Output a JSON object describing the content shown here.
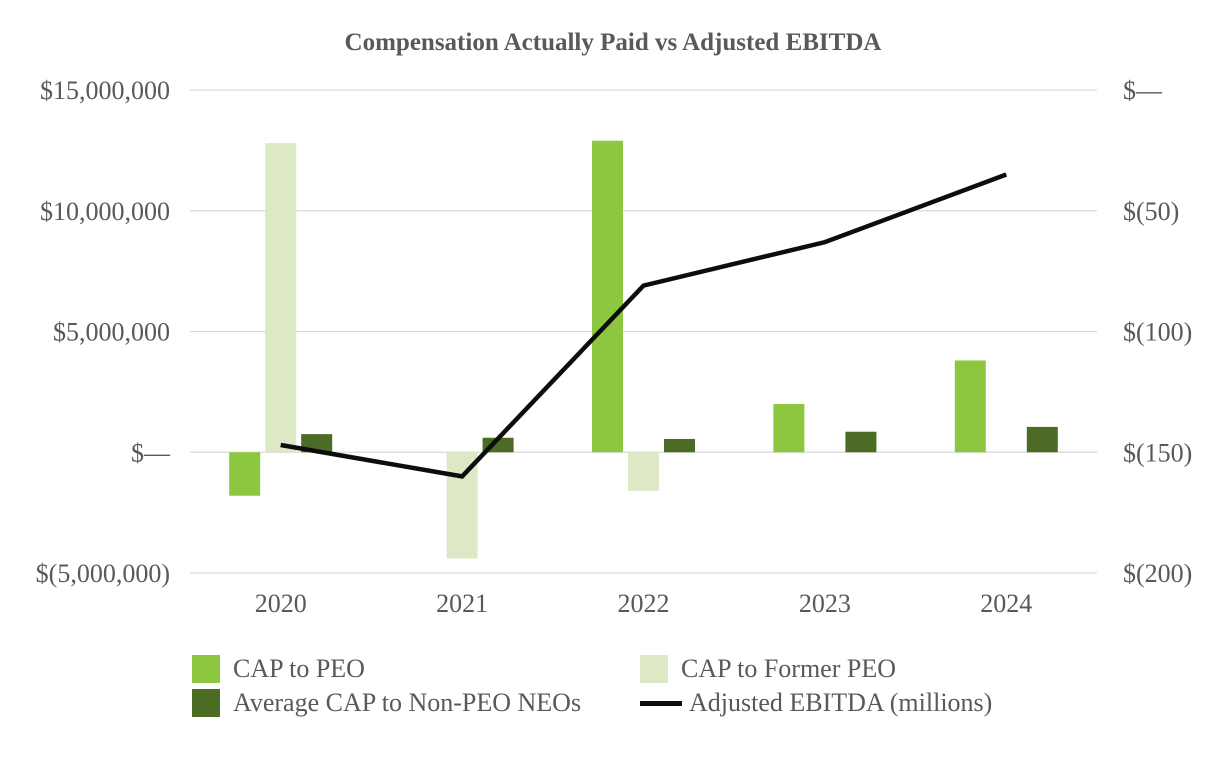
{
  "page": {
    "background": "#ffffff",
    "text_color": "#595959",
    "grid_color": "#d9d9d9"
  },
  "chart_data": {
    "type": "combo",
    "title": "Compensation Actually Paid vs Adjusted EBITDA",
    "categories": [
      "2020",
      "2021",
      "2022",
      "2023",
      "2024"
    ],
    "series": [
      {
        "name": "CAP to PEO",
        "type": "bar",
        "axis": "left",
        "color": "#8dc63f",
        "values": [
          -1800000,
          0,
          12900000,
          2000000,
          3800000
        ]
      },
      {
        "name": "CAP to Former PEO",
        "type": "bar",
        "axis": "left",
        "color": "#dce8c6",
        "values": [
          12800000,
          -4400000,
          -1600000,
          0,
          0
        ]
      },
      {
        "name": "Average CAP to Non-PEO NEOs",
        "type": "bar",
        "axis": "left",
        "color": "#4c6b24",
        "values": [
          750000,
          600000,
          550000,
          850000,
          1050000
        ]
      },
      {
        "name": "Adjusted EBITDA (millions)",
        "type": "line",
        "axis": "right",
        "color": "#0d0d0d",
        "values": [
          -147,
          -160,
          -81,
          -63,
          -35
        ]
      }
    ],
    "left_axis": {
      "min": -5000000,
      "max": 15000000,
      "tick_values": [
        15000000,
        10000000,
        5000000,
        0,
        -5000000
      ],
      "tick_labels": [
        "$15,000,000",
        "$10,000,000",
        "$5,000,000",
        "$—",
        "$(5,000,000)"
      ]
    },
    "right_axis": {
      "min": -200,
      "max": 0,
      "tick_values": [
        0,
        -50,
        -100,
        -150,
        -200
      ],
      "tick_labels": [
        "$—",
        "$(50)",
        "$(100)",
        "$(150)",
        "$(200)"
      ]
    },
    "grid": true,
    "legend_position": "bottom"
  }
}
